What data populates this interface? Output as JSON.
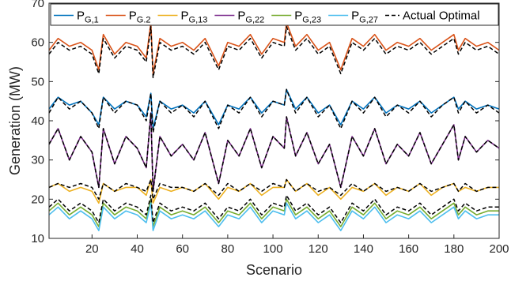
{
  "chart_data": {
    "type": "line",
    "xlabel": "Scenario",
    "ylabel": "Generation (MW)",
    "xlim": [
      1,
      200
    ],
    "ylim": [
      10,
      70
    ],
    "xticks": [
      20,
      40,
      60,
      80,
      100,
      120,
      140,
      160,
      180,
      200
    ],
    "yticks": [
      10,
      20,
      30,
      40,
      50,
      60,
      70
    ],
    "grid": false,
    "legend_position": "top",
    "legend": [
      {
        "main": "P",
        "sub": "G,1",
        "color": "#0072BD",
        "dash": "solid"
      },
      {
        "main": "P",
        "sub": "G.2",
        "color": "#D95319",
        "dash": "solid"
      },
      {
        "main": "P",
        "sub": "G,13",
        "color": "#EDB120",
        "dash": "solid"
      },
      {
        "main": "P",
        "sub": "G,22",
        "color": "#7E2F8E",
        "dash": "solid"
      },
      {
        "main": "P",
        "sub": "G,23",
        "color": "#77AC30",
        "dash": "solid"
      },
      {
        "main": "P",
        "sub": "G,27",
        "color": "#4DBEEE",
        "dash": "solid"
      },
      {
        "main": "Actual Optimal",
        "sub": "",
        "color": "#000000",
        "dash": "dashed"
      }
    ],
    "series": [
      {
        "name": "P_G,2",
        "color": "#D95319",
        "dash": "solid",
        "x": [
          1,
          5,
          10,
          15,
          20,
          23,
          25,
          30,
          35,
          40,
          44,
          46,
          47,
          50,
          55,
          60,
          65,
          70,
          76,
          80,
          85,
          90,
          95,
          100,
          105,
          106,
          110,
          115,
          120,
          125,
          130,
          135,
          140,
          145,
          150,
          155,
          160,
          165,
          170,
          175,
          180,
          182,
          185,
          190,
          195,
          200
        ],
        "y": [
          58,
          61,
          59,
          60,
          58,
          53,
          62,
          57,
          60,
          59,
          56,
          65,
          52,
          61,
          59,
          60,
          58,
          61,
          54,
          60,
          59,
          62,
          57,
          61,
          60,
          65,
          59,
          62,
          58,
          60,
          53,
          61,
          59,
          62,
          58,
          60,
          59,
          61,
          58,
          60,
          62,
          58,
          61,
          59,
          60,
          58
        ]
      },
      {
        "name": "P_G,1",
        "color": "#0072BD",
        "dash": "solid",
        "x": [
          1,
          5,
          10,
          15,
          20,
          23,
          25,
          30,
          35,
          40,
          44,
          46,
          47,
          50,
          55,
          60,
          65,
          70,
          76,
          80,
          85,
          90,
          95,
          100,
          105,
          106,
          110,
          115,
          120,
          125,
          130,
          135,
          140,
          145,
          150,
          155,
          160,
          165,
          170,
          175,
          180,
          182,
          185,
          190,
          195,
          200
        ],
        "y": [
          43,
          46,
          44,
          45,
          42,
          39,
          46,
          43,
          45,
          44,
          41,
          47,
          38,
          45,
          43,
          44,
          42,
          45,
          39,
          44,
          43,
          46,
          42,
          45,
          44,
          48,
          43,
          46,
          42,
          44,
          39,
          45,
          43,
          46,
          42,
          44,
          43,
          45,
          42,
          44,
          46,
          43,
          45,
          43,
          44,
          43
        ]
      },
      {
        "name": "P_G,22",
        "color": "#7E2F8E",
        "dash": "solid",
        "x": [
          1,
          5,
          10,
          15,
          20,
          23,
          25,
          30,
          35,
          40,
          44,
          46,
          47,
          50,
          55,
          60,
          65,
          70,
          76,
          80,
          85,
          90,
          95,
          100,
          105,
          106,
          110,
          115,
          120,
          125,
          130,
          135,
          140,
          145,
          150,
          155,
          160,
          165,
          170,
          175,
          180,
          182,
          185,
          190,
          195,
          200
        ],
        "y": [
          34,
          38,
          30,
          36,
          32,
          23,
          38,
          29,
          36,
          33,
          28,
          42,
          22,
          36,
          31,
          34,
          30,
          37,
          24,
          35,
          31,
          38,
          28,
          36,
          33,
          41,
          31,
          37,
          29,
          34,
          23,
          36,
          31,
          38,
          29,
          34,
          31,
          37,
          29,
          34,
          39,
          30,
          36,
          32,
          35,
          33
        ]
      },
      {
        "name": "P_G,13",
        "color": "#EDB120",
        "dash": "solid",
        "x": [
          1,
          5,
          10,
          15,
          20,
          23,
          25,
          30,
          35,
          40,
          44,
          46,
          47,
          50,
          55,
          60,
          65,
          70,
          76,
          80,
          85,
          90,
          95,
          100,
          105,
          106,
          110,
          115,
          120,
          125,
          130,
          135,
          140,
          145,
          150,
          155,
          160,
          165,
          170,
          175,
          180,
          182,
          185,
          190,
          195,
          200
        ],
        "y": [
          23,
          24,
          22,
          23,
          22,
          19,
          24,
          22,
          23,
          23,
          21,
          25,
          19,
          23,
          22,
          23,
          22,
          24,
          20,
          23,
          22,
          24,
          21,
          23,
          23,
          25,
          22,
          24,
          21,
          23,
          20,
          23,
          22,
          24,
          21,
          23,
          22,
          24,
          21,
          23,
          24,
          22,
          23,
          22,
          23,
          23
        ]
      },
      {
        "name": "P_G,23",
        "color": "#77AC30",
        "dash": "solid",
        "x": [
          1,
          5,
          10,
          15,
          20,
          23,
          25,
          30,
          35,
          40,
          44,
          46,
          47,
          50,
          55,
          60,
          65,
          70,
          76,
          80,
          85,
          90,
          95,
          100,
          105,
          106,
          110,
          115,
          120,
          125,
          130,
          135,
          140,
          145,
          150,
          155,
          160,
          165,
          170,
          175,
          180,
          182,
          185,
          190,
          195,
          200
        ],
        "y": [
          17,
          19,
          16,
          18,
          16,
          13,
          19,
          16,
          18,
          17,
          15,
          20,
          13,
          18,
          16,
          17,
          16,
          18,
          14,
          17,
          16,
          19,
          15,
          18,
          17,
          20,
          16,
          18,
          15,
          17,
          13,
          18,
          16,
          19,
          15,
          17,
          16,
          18,
          15,
          17,
          19,
          16,
          18,
          16,
          17,
          17
        ]
      },
      {
        "name": "P_G,27",
        "color": "#4DBEEE",
        "dash": "solid",
        "x": [
          1,
          5,
          10,
          15,
          20,
          23,
          25,
          30,
          35,
          40,
          44,
          46,
          47,
          50,
          55,
          60,
          65,
          70,
          76,
          80,
          85,
          90,
          95,
          100,
          105,
          106,
          110,
          115,
          120,
          125,
          130,
          135,
          140,
          145,
          150,
          155,
          160,
          165,
          170,
          175,
          180,
          182,
          185,
          190,
          195,
          200
        ],
        "y": [
          16,
          18,
          15,
          17,
          15,
          12,
          18,
          15,
          17,
          16,
          14,
          19,
          12,
          17,
          15,
          16,
          15,
          17,
          13,
          16,
          15,
          18,
          14,
          17,
          16,
          19,
          15,
          17,
          14,
          16,
          12,
          17,
          15,
          18,
          14,
          16,
          15,
          17,
          14,
          16,
          18,
          15,
          17,
          15,
          16,
          16
        ]
      },
      {
        "name": "Actual Optimal (P_G,2)",
        "color": "#000000",
        "dash": "dashed",
        "x": [
          1,
          5,
          10,
          15,
          20,
          23,
          25,
          30,
          35,
          40,
          44,
          46,
          47,
          50,
          55,
          60,
          65,
          70,
          76,
          80,
          85,
          90,
          95,
          100,
          105,
          106,
          110,
          115,
          120,
          125,
          130,
          135,
          140,
          145,
          150,
          155,
          160,
          165,
          170,
          175,
          180,
          182,
          185,
          190,
          195,
          200
        ],
        "y": [
          57,
          60,
          58,
          59,
          57,
          52,
          61,
          56,
          59,
          58,
          55,
          64,
          51,
          60,
          58,
          59,
          57,
          60,
          53,
          59,
          58,
          61,
          56,
          60,
          59,
          64,
          58,
          61,
          57,
          59,
          52,
          60,
          58,
          61,
          57,
          59,
          58,
          60,
          57,
          59,
          61,
          57,
          60,
          58,
          59,
          57
        ]
      },
      {
        "name": "Actual Optimal (P_G,1)",
        "color": "#000000",
        "dash": "dashed",
        "x": [
          1,
          5,
          10,
          15,
          20,
          23,
          25,
          30,
          35,
          40,
          44,
          46,
          47,
          50,
          55,
          60,
          65,
          70,
          76,
          80,
          85,
          90,
          95,
          100,
          105,
          106,
          110,
          115,
          120,
          125,
          130,
          135,
          140,
          145,
          150,
          155,
          160,
          165,
          170,
          175,
          180,
          182,
          185,
          190,
          195,
          200
        ],
        "y": [
          42,
          46,
          43,
          45,
          42,
          38,
          46,
          42,
          45,
          44,
          40,
          47,
          37,
          45,
          42,
          44,
          41,
          45,
          38,
          44,
          42,
          46,
          41,
          45,
          44,
          48,
          42,
          46,
          41,
          44,
          38,
          45,
          42,
          46,
          41,
          44,
          42,
          45,
          41,
          44,
          46,
          42,
          45,
          42,
          44,
          42
        ]
      },
      {
        "name": "Actual Optimal (P_G,22)",
        "color": "#000000",
        "dash": "dashed",
        "x": [
          1,
          5,
          10,
          15,
          20,
          23,
          25,
          30,
          35,
          40,
          44,
          46,
          47,
          50,
          55,
          60,
          65,
          70,
          76,
          80,
          85,
          90,
          95,
          100,
          105,
          106,
          110,
          115,
          120,
          125,
          130,
          135,
          140,
          145,
          150,
          155,
          160,
          165,
          170,
          175,
          180,
          182,
          185,
          190,
          195,
          200
        ],
        "y": [
          34,
          38,
          30,
          36,
          32,
          23,
          38,
          29,
          36,
          33,
          28,
          42,
          22,
          36,
          31,
          34,
          30,
          37,
          24,
          35,
          31,
          38,
          28,
          36,
          33,
          41,
          31,
          37,
          29,
          34,
          23,
          36,
          31,
          38,
          29,
          34,
          31,
          37,
          29,
          34,
          39,
          30,
          36,
          32,
          35,
          33
        ]
      },
      {
        "name": "Actual Optimal (P_G,13)",
        "color": "#000000",
        "dash": "dashed",
        "x": [
          1,
          5,
          10,
          15,
          20,
          23,
          25,
          30,
          35,
          40,
          44,
          46,
          47,
          50,
          55,
          60,
          65,
          70,
          76,
          80,
          85,
          90,
          95,
          100,
          105,
          106,
          110,
          115,
          120,
          125,
          130,
          135,
          140,
          145,
          150,
          155,
          160,
          165,
          170,
          175,
          180,
          182,
          185,
          190,
          195,
          200
        ],
        "y": [
          23,
          24,
          23,
          24,
          23,
          20,
          24,
          22,
          24,
          23,
          22,
          25,
          20,
          24,
          23,
          23,
          22,
          24,
          21,
          24,
          22,
          24,
          22,
          24,
          23,
          25,
          22,
          24,
          22,
          23,
          21,
          24,
          22,
          24,
          22,
          23,
          22,
          24,
          22,
          23,
          24,
          22,
          24,
          22,
          23,
          23
        ]
      },
      {
        "name": "Actual Optimal (P_G,23/27)",
        "color": "#000000",
        "dash": "dashed",
        "x": [
          1,
          5,
          10,
          15,
          20,
          23,
          25,
          30,
          35,
          40,
          44,
          46,
          47,
          50,
          55,
          60,
          65,
          70,
          76,
          80,
          85,
          90,
          95,
          100,
          105,
          106,
          110,
          115,
          120,
          125,
          130,
          135,
          140,
          145,
          150,
          155,
          160,
          165,
          170,
          175,
          180,
          182,
          185,
          190,
          195,
          200
        ],
        "y": [
          18,
          20,
          17,
          19,
          17,
          14,
          20,
          17,
          19,
          18,
          16,
          21,
          14,
          19,
          17,
          18,
          17,
          19,
          15,
          18,
          17,
          20,
          16,
          19,
          18,
          21,
          17,
          19,
          16,
          18,
          14,
          19,
          17,
          20,
          16,
          18,
          17,
          19,
          16,
          18,
          20,
          17,
          19,
          17,
          18,
          18
        ]
      }
    ]
  }
}
